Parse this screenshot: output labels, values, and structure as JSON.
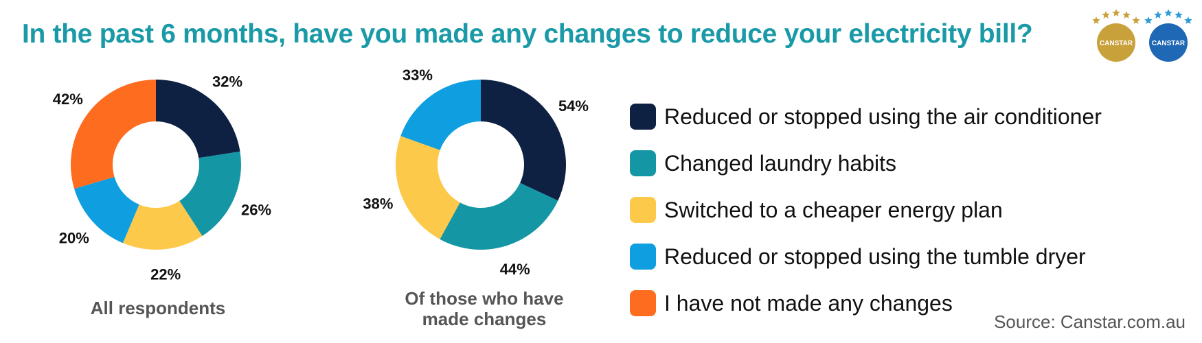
{
  "title": "In the past 6 months, have you made any changes to reduce your electricity bill?",
  "logos": [
    {
      "text": "CANSTAR",
      "icon": "canstar-gold-stars-logo",
      "color": "#c9a13b",
      "star_color": "#c9a13b"
    },
    {
      "text": "CANSTAR",
      "icon": "canstar-blue-stars-logo",
      "color": "#1f68b5",
      "star_color": "#2f9bd6"
    }
  ],
  "chart_data": [
    {
      "type": "pie",
      "donut": true,
      "title": "All respondents",
      "categories": [
        "Reduced or stopped using the air conditioner",
        "Changed laundry habits",
        "Switched to a cheaper energy plan",
        "Reduced or stopped using the tumble dryer",
        "I have not made any changes"
      ],
      "values": [
        32,
        26,
        22,
        20,
        42
      ],
      "value_labels": [
        "32%",
        "26%",
        "22%",
        "20%",
        "42%"
      ],
      "colors": [
        "#0e2143",
        "#1596a5",
        "#fdc94a",
        "#0f9ee0",
        "#fe6c1f"
      ]
    },
    {
      "type": "pie",
      "donut": true,
      "title": "Of those who have made changes",
      "categories": [
        "Reduced or stopped using the air conditioner",
        "Changed laundry habits",
        "Switched to a cheaper energy plan",
        "Reduced or stopped using the tumble dryer"
      ],
      "values": [
        54,
        44,
        38,
        33
      ],
      "value_labels": [
        "54%",
        "44%",
        "38%",
        "33%"
      ],
      "colors": [
        "#0e2143",
        "#1596a5",
        "#fdc94a",
        "#0f9ee0"
      ]
    }
  ],
  "legend": [
    {
      "label": "Reduced or stopped using the air conditioner",
      "color": "#0e2143"
    },
    {
      "label": "Changed laundry habits",
      "color": "#1596a5"
    },
    {
      "label": "Switched to a cheaper energy plan",
      "color": "#fdc94a"
    },
    {
      "label": "Reduced or stopped using the tumble dryer",
      "color": "#0f9ee0"
    },
    {
      "label": "I have not made any changes",
      "color": "#fe6c1f"
    }
  ],
  "source": "Source: Canstar.com.au"
}
